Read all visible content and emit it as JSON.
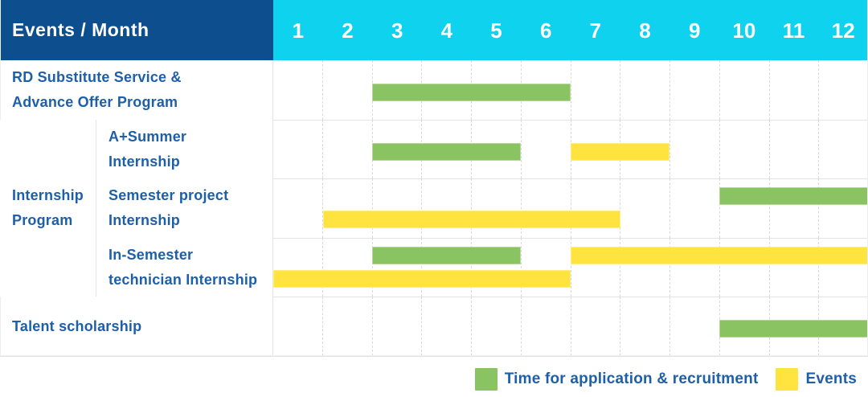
{
  "header": {
    "label": "Events / Month",
    "months": [
      "1",
      "2",
      "3",
      "4",
      "5",
      "6",
      "7",
      "8",
      "9",
      "10",
      "11",
      "12"
    ]
  },
  "legend": {
    "items": [
      {
        "key": "application",
        "label": "Time for application & recruitment"
      },
      {
        "key": "events",
        "label": "Events"
      }
    ]
  },
  "colors": {
    "background": "#ffffff",
    "header_navy": "#0d4e8e",
    "header_cyan": "#0fd2ee",
    "bar_green": "#8ac462",
    "bar_yellow": "#ffe33e",
    "label_blue": "#1e5fa9",
    "grid_line": "#e4e4e4",
    "grid_dashed": "#d9d9d9"
  },
  "chart_data": {
    "type": "bar",
    "subtype": "gantt-month-timeline",
    "title": "Events / Month",
    "x_axis": {
      "label": "Month",
      "ticks": [
        1,
        2,
        3,
        4,
        5,
        6,
        7,
        8,
        9,
        10,
        11,
        12
      ],
      "range": [
        1,
        12
      ],
      "position": "top"
    },
    "grid": "dashed-vertical-month-lines",
    "legend_position": "bottom-right",
    "series_legend": [
      {
        "name": "Time for application & recruitment",
        "key": "application",
        "color": "#8ac462"
      },
      {
        "name": "Events",
        "key": "events",
        "color": "#ffe33e"
      }
    ],
    "groups": [
      {
        "label": "Internship Program",
        "label_lines": [
          "Internship",
          "Program"
        ],
        "row_indexes": [
          1,
          2,
          3
        ]
      }
    ],
    "rows": [
      {
        "label": "RD Substitute Service & Advance Offer Program",
        "label_lines": [
          "RD Substitute Service &",
          "Advance Offer Program"
        ],
        "group": null,
        "segments": [
          {
            "series": "Time for application & recruitment",
            "start_month": 3,
            "end_month": 6,
            "lane": "single"
          }
        ]
      },
      {
        "label": "A+Summer Internship",
        "label_lines": [
          "A+Summer",
          "Internship"
        ],
        "group": "Internship Program",
        "segments": [
          {
            "series": "Time for application & recruitment",
            "start_month": 3,
            "end_month": 5,
            "lane": "single"
          },
          {
            "series": "Events",
            "start_month": 7,
            "end_month": 8,
            "lane": "single"
          }
        ]
      },
      {
        "label": "Semester project Internship",
        "label_lines": [
          "Semester project",
          "Internship"
        ],
        "group": "Internship Program",
        "segments": [
          {
            "series": "Time for application & recruitment",
            "start_month": 10,
            "end_month": 12,
            "lane": "top"
          },
          {
            "series": "Events",
            "start_month": 2,
            "end_month": 7,
            "lane": "bottom"
          }
        ]
      },
      {
        "label": "In-Semester technician Internship",
        "label_lines": [
          "In-Semester",
          "technician Internship"
        ],
        "group": "Internship Program",
        "segments": [
          {
            "series": "Time for application & recruitment",
            "start_month": 3,
            "end_month": 5,
            "lane": "top"
          },
          {
            "series": "Events",
            "start_month": 7,
            "end_month": 12,
            "lane": "top"
          },
          {
            "series": "Events",
            "start_month": 1,
            "end_month": 6,
            "lane": "bottom"
          }
        ]
      },
      {
        "label": "Talent scholarship",
        "label_lines": [
          "Talent scholarship"
        ],
        "group": null,
        "segments": [
          {
            "series": "Time for application & recruitment",
            "start_month": 10,
            "end_month": 12,
            "lane": "single"
          }
        ]
      }
    ]
  }
}
